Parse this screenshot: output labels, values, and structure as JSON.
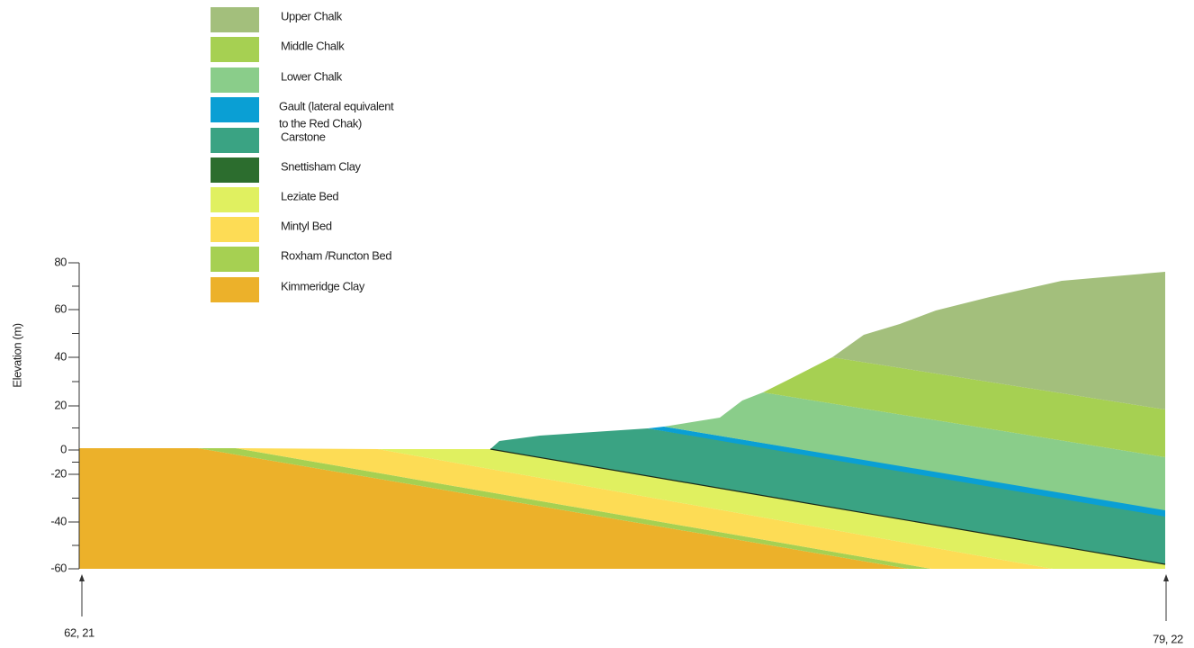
{
  "legend": [
    {
      "label": "Upper Chalk",
      "color": "#a3bf7c"
    },
    {
      "label": "Middle Chalk",
      "color": "#a6d052"
    },
    {
      "label": "Lower Chalk",
      "color": "#8acd8a"
    },
    {
      "label": [
        "Gault (lateral equivalent",
        "to the Red Chak)"
      ],
      "color": "#0a9fd4"
    },
    {
      "label": "Carstone",
      "color": "#3aa383"
    },
    {
      "label": "Snettisham Clay",
      "color": "#2c6d2e"
    },
    {
      "label": "Leziate Bed",
      "color": "#e0f060"
    },
    {
      "label": "Mintyl Bed",
      "color": "#fddc55"
    },
    {
      "label": "Roxham /Runcton Bed",
      "color": "#a6d052"
    },
    {
      "label": "Kimmeridge Clay",
      "color": "#ecb12a"
    }
  ],
  "axis": {
    "label": "Elevation (m)",
    "ticks": [
      80,
      60,
      40,
      20,
      0,
      -20,
      -40,
      -60
    ]
  },
  "endpoints": {
    "left": "62, 21",
    "right": "79, 22"
  }
}
